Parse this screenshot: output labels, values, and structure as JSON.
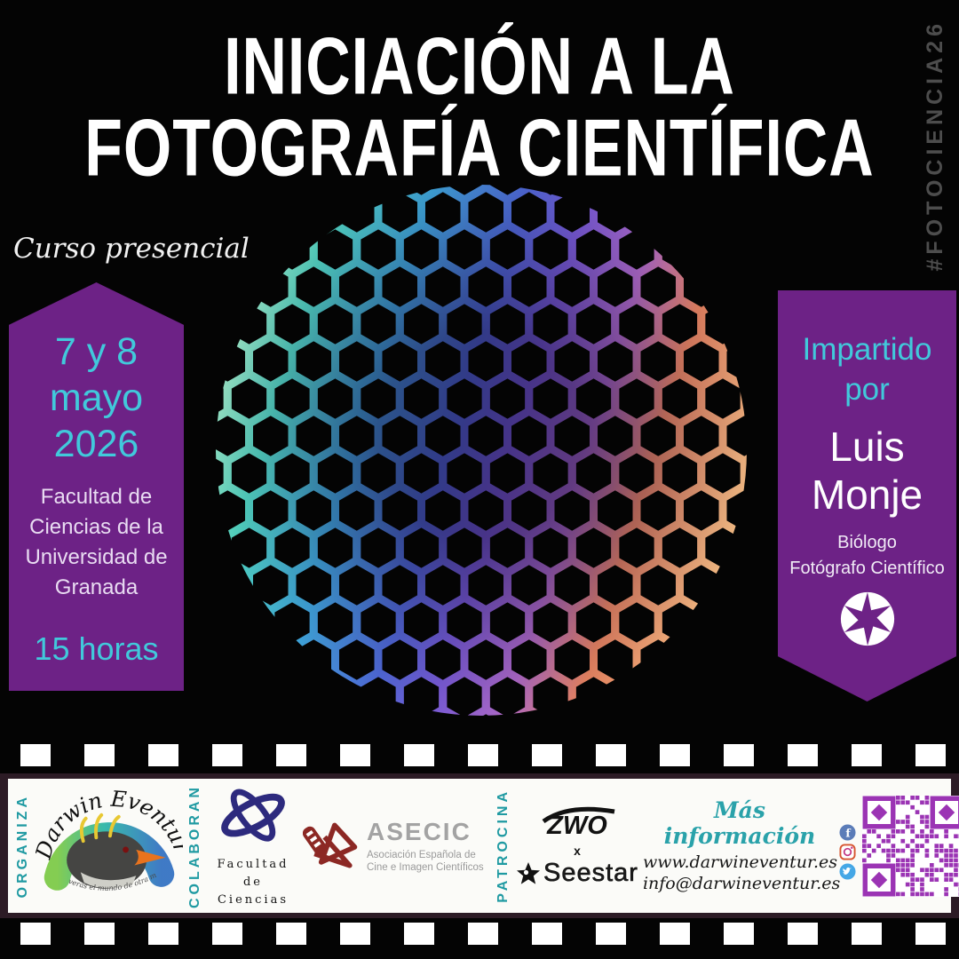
{
  "poster": {
    "title_line1": "INICIACIÓN A LA",
    "title_line2": "FOTOGRAFÍA CIENTÍFICA",
    "hashtag": "#FOTOCIENCIA26",
    "course_type": "Curso presencial"
  },
  "left_panel": {
    "dates": [
      "7 y 8",
      "mayo",
      "2026"
    ],
    "venue": [
      "Facultad de",
      "Ciencias de la",
      "Universidad de",
      "Granada"
    ],
    "duration": "15 horas"
  },
  "right_panel": {
    "intro1": "Impartido",
    "intro2": "por",
    "name1": "Luis",
    "name2": "Monje",
    "role1": "Biólogo",
    "role2": "Fotógrafo Científico"
  },
  "footer": {
    "organiza_label": "ORGANIZA",
    "colaboran_label": "COLABORAN",
    "patrocina_label": "PATROCINA",
    "darwin": {
      "name": "Darwin Eventur",
      "tagline": "verás el mundo de otra manera"
    },
    "facultad": {
      "line1": "Facultad de",
      "line2": "Ciencias"
    },
    "asecic": {
      "name": "ASECIC",
      "desc1": "Asociación Española de",
      "desc2": "Cine e Imagen Científicos"
    },
    "sponsors": {
      "zwo": "ZWO",
      "x": "x",
      "seestar": "Seestar"
    },
    "info": {
      "heading": "Más información",
      "web": "www.darwineventur.es",
      "email": "info@darwineventur.es"
    }
  },
  "colors": {
    "purple_panel": "#6d2286",
    "cyan_accent": "#41c9db",
    "teal_label": "#1f9aa2",
    "hashtag_gray": "#4d4d4d",
    "asecic_red": "#8c2824",
    "facultad_blue": "#2d2a7e",
    "qr_purple": "#9b34b4",
    "banner_frame": "#2c1b25"
  }
}
